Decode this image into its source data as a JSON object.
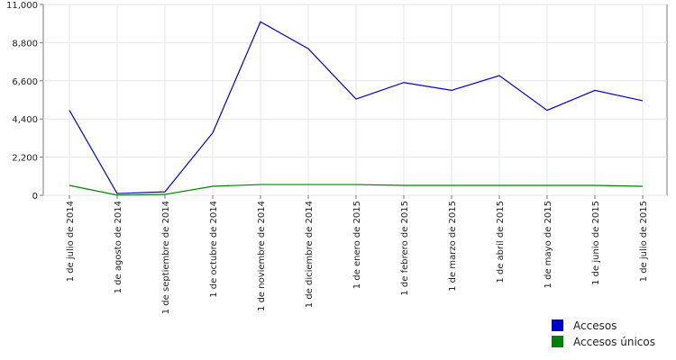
{
  "chart_data": {
    "type": "line",
    "categories": [
      "1 de julio de 2014",
      "1 de agosto de 2014",
      "1 de septiembre de 2014",
      "1 de octubre de 2014",
      "1 de noviembre de 2014",
      "1 de diciembre de 2014",
      "1 de enero de 2015",
      "1 de febrero de 2015",
      "1 de marzo de 2015",
      "1 de abril de 2015",
      "1 de mayo de 2015",
      "1 de junio de 2015",
      "1 de julio de 2015"
    ],
    "series": [
      {
        "name": "Accesos",
        "color": "#0000cc",
        "values": [
          4900,
          100,
          200,
          3600,
          10000,
          8450,
          5550,
          6500,
          6050,
          6900,
          4900,
          6050,
          5450
        ]
      },
      {
        "name": "Accesos únicos",
        "color": "#008000",
        "values": [
          570,
          10,
          50,
          520,
          620,
          620,
          620,
          570,
          570,
          570,
          570,
          570,
          520
        ]
      }
    ],
    "ylim": [
      0,
      11000
    ],
    "yticks": [
      0,
      {
        "value": 2200,
        "label": "2,200"
      },
      {
        "value": 4400,
        "label": "4,400"
      },
      {
        "value": 6600,
        "label": "6,600"
      },
      {
        "value": 8800,
        "label": "8,800"
      },
      {
        "value": 11000,
        "label": "11,000"
      }
    ],
    "grid": true,
    "legend": "bottom-right"
  }
}
